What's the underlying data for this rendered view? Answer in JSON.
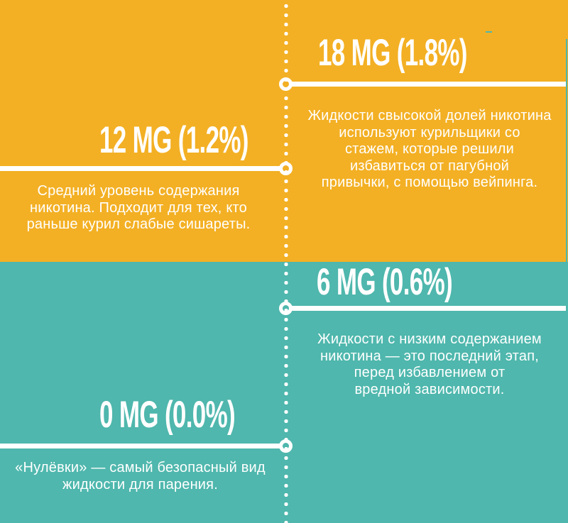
{
  "page": {
    "type": "infographic",
    "language": "ru",
    "topic": "nicotine strength levels in vaping e-liquids"
  },
  "colors": {
    "top_background": "#F3B024",
    "bottom_background": "#4FB7AD",
    "text": "#FFFFFF",
    "connector": "#FFFFFF"
  },
  "timeline": {
    "style": "vertical-dotted-line-center",
    "node_shape": "ring"
  },
  "sections": [
    {
      "id": "18mg",
      "side": "right",
      "background": "#F3B024",
      "title": "18 MG (1.8%)",
      "body": "Жидкости свысокой долей никотина\nиспользуют курильщики со\nстажем, которые решили\nизбавиться от пагубной\nпривычки, с помощью вейпинга."
    },
    {
      "id": "12mg",
      "side": "left",
      "background": "#F3B024",
      "title": "12 MG (1.2%)",
      "body": "Средний уровень содержания\nникотина. Подходит для тех, кто\nраньше курил слабые сишареты."
    },
    {
      "id": "6mg",
      "side": "right",
      "background": "#4FB7AD",
      "title": "6 MG (0.6%)",
      "body": "Жидкости с низким содержанием\nникотина — это последний этап,\nперед избавлением от\nвредной зависимости."
    },
    {
      "id": "0mg",
      "side": "left",
      "background": "#4FB7AD",
      "title": "0 MG (0.0%)",
      "body": "«Нулёвки» — самый безопасный вид\nжидкости для парения."
    }
  ]
}
